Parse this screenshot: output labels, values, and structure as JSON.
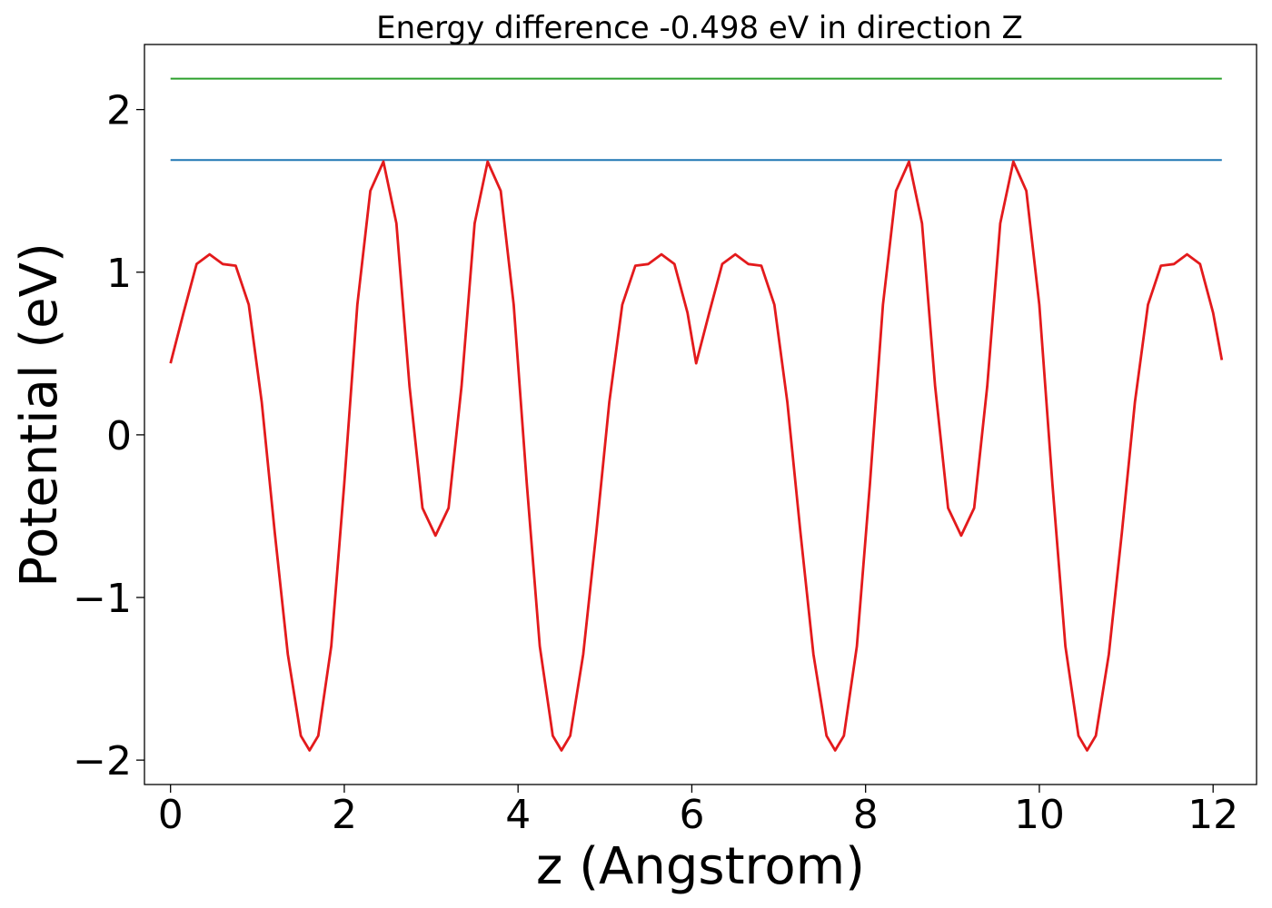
{
  "chart_data": {
    "type": "line",
    "title": "Energy difference -0.498 eV in direction Z",
    "xlabel": "z (Angstrom)",
    "ylabel": "Potential (eV)",
    "xlim": [
      -0.3,
      12.5
    ],
    "ylim": [
      -2.15,
      2.4
    ],
    "xticks": [
      0,
      2,
      4,
      6,
      8,
      10,
      12
    ],
    "xtick_labels": [
      "0",
      "2",
      "4",
      "6",
      "8",
      "10",
      "12"
    ],
    "yticks": [
      -2,
      -1,
      0,
      1,
      2
    ],
    "ytick_labels": [
      "−2",
      "−1",
      "0",
      "1",
      "2"
    ],
    "grid": false,
    "series": [
      {
        "color": "#1f77b4",
        "x": [
          0,
          12.1
        ],
        "y": [
          1.69,
          1.69
        ]
      },
      {
        "color": "#2ca02c",
        "x": [
          0,
          12.1
        ],
        "y": [
          2.19,
          2.19
        ]
      },
      {
        "color": "#e31a1c",
        "x": [
          0,
          0.15,
          0.3,
          0.45,
          0.6,
          0.75,
          0.9,
          1.05,
          1.2,
          1.35,
          1.5,
          1.6,
          1.7,
          1.85,
          2.0,
          2.15,
          2.3,
          2.45,
          2.6,
          2.75,
          2.9,
          3.05,
          3.2,
          3.35,
          3.5,
          3.65,
          3.8,
          3.95,
          4.1,
          4.25,
          4.4,
          4.5,
          4.6,
          4.75,
          4.9,
          5.05,
          5.2,
          5.35,
          5.5,
          5.65,
          5.8,
          5.95,
          6.05,
          6.2,
          6.35,
          6.5,
          6.65,
          6.8,
          6.95,
          7.1,
          7.25,
          7.4,
          7.55,
          7.65,
          7.75,
          7.9,
          8.05,
          8.2,
          8.35,
          8.5,
          8.65,
          8.8,
          8.95,
          9.1,
          9.25,
          9.4,
          9.55,
          9.7,
          9.85,
          10.0,
          10.15,
          10.3,
          10.45,
          10.55,
          10.65,
          10.8,
          10.95,
          11.1,
          11.25,
          11.4,
          11.55,
          11.7,
          11.85,
          12.0,
          12.1
        ],
        "y": [
          0.44,
          0.75,
          1.05,
          1.11,
          1.05,
          1.04,
          0.8,
          0.2,
          -0.6,
          -1.35,
          -1.85,
          -1.94,
          -1.85,
          -1.3,
          -0.3,
          0.8,
          1.5,
          1.68,
          1.3,
          0.3,
          -0.45,
          -0.62,
          -0.45,
          0.3,
          1.3,
          1.68,
          1.5,
          0.8,
          -0.3,
          -1.3,
          -1.85,
          -1.94,
          -1.85,
          -1.35,
          -0.6,
          0.2,
          0.8,
          1.04,
          1.05,
          1.11,
          1.05,
          0.75,
          0.44,
          0.75,
          1.05,
          1.11,
          1.05,
          1.04,
          0.8,
          0.2,
          -0.6,
          -1.35,
          -1.85,
          -1.94,
          -1.85,
          -1.3,
          -0.3,
          0.8,
          1.5,
          1.68,
          1.3,
          0.3,
          -0.45,
          -0.62,
          -0.45,
          0.3,
          1.3,
          1.68,
          1.5,
          0.8,
          -0.3,
          -1.3,
          -1.85,
          -1.94,
          -1.85,
          -1.35,
          -0.6,
          0.2,
          0.8,
          1.04,
          1.05,
          1.11,
          1.05,
          0.75,
          0.46
        ]
      }
    ]
  }
}
